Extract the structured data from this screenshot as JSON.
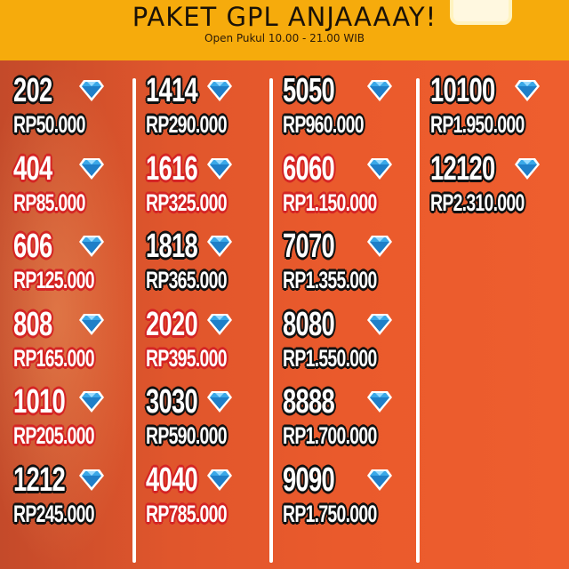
{
  "header": {
    "title": "PAKET GPL ANJAAAAY!",
    "subtitle": "Open Pukul 10.00 - 21.00 WIB"
  },
  "colors": {
    "header_bg": "#f6ab0c",
    "body_bg": "#e8552a",
    "outline_black": "#111111",
    "outline_red": "#d42424",
    "diamond": "#3aa8e8"
  },
  "icon": "diamond-icon",
  "columns": [
    {
      "items": [
        {
          "amount": "202",
          "price": "RP50.000",
          "style": "black"
        },
        {
          "amount": "404",
          "price": "RP85.000",
          "style": "red"
        },
        {
          "amount": "606",
          "price": "RP125.000",
          "style": "red"
        },
        {
          "amount": "808",
          "price": "RP165.000",
          "style": "red"
        },
        {
          "amount": "1010",
          "price": "RP205.000",
          "style": "red"
        },
        {
          "amount": "1212",
          "price": "RP245.000",
          "style": "black"
        }
      ]
    },
    {
      "items": [
        {
          "amount": "1414",
          "price": "RP290.000",
          "style": "black"
        },
        {
          "amount": "1616",
          "price": "RP325.000",
          "style": "red"
        },
        {
          "amount": "1818",
          "price": "RP365.000",
          "style": "black"
        },
        {
          "amount": "2020",
          "price": "RP395.000",
          "style": "red"
        },
        {
          "amount": "3030",
          "price": "RP590.000",
          "style": "black"
        },
        {
          "amount": "4040",
          "price": "RP785.000",
          "style": "red"
        }
      ]
    },
    {
      "items": [
        {
          "amount": "5050",
          "price": "RP960.000",
          "style": "black"
        },
        {
          "amount": "6060",
          "price": "RP1.150.000",
          "style": "red"
        },
        {
          "amount": "7070",
          "price": "RP1.355.000",
          "style": "black"
        },
        {
          "amount": "8080",
          "price": "RP1.550.000",
          "style": "black"
        },
        {
          "amount": "8888",
          "price": "RP1.700.000",
          "style": "black"
        },
        {
          "amount": "9090",
          "price": "RP1.750.000",
          "style": "black"
        }
      ]
    },
    {
      "items": [
        {
          "amount": "10100",
          "price": "RP1.950.000",
          "style": "black"
        },
        {
          "amount": "12120",
          "price": "RP2.310.000",
          "style": "black"
        }
      ]
    }
  ]
}
